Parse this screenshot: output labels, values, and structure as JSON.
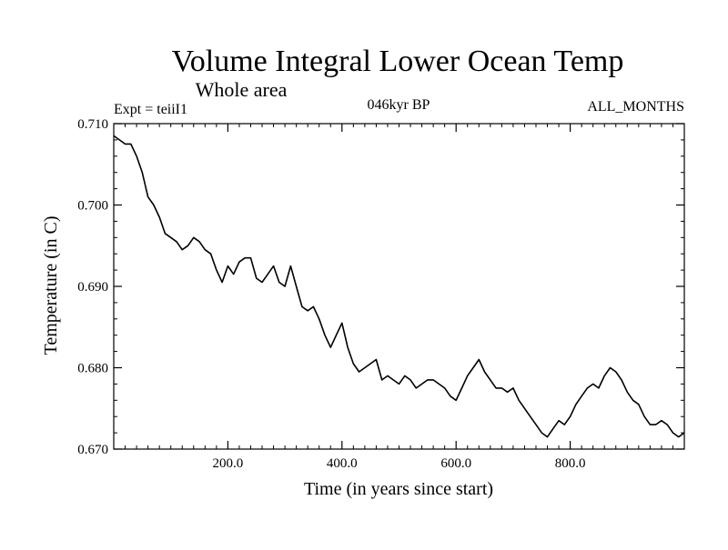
{
  "chart_data": {
    "type": "line",
    "title": "Volume Integral Lower Ocean Temp",
    "subtitle": "Whole area",
    "annotations": {
      "left": "Expt = teiiI1",
      "center": "046kyr BP",
      "right": "ALL_MONTHS"
    },
    "xlabel": "Time (in years since start)",
    "ylabel": "Temperature (in C)",
    "xlim": [
      0,
      1000
    ],
    "ylim": [
      0.67,
      0.71
    ],
    "xticks": [
      200,
      400,
      600,
      800
    ],
    "xtick_labels": [
      "200.0",
      "400.0",
      "600.0",
      "800.0"
    ],
    "yticks": [
      0.67,
      0.68,
      0.69,
      0.7,
      0.71
    ],
    "ytick_labels": [
      "0.670",
      "0.680",
      "0.690",
      "0.700",
      "0.710"
    ],
    "grid": false,
    "legend": "none",
    "series": [
      {
        "color": "#000000",
        "x": [
          0,
          10,
          20,
          30,
          40,
          50,
          60,
          70,
          80,
          90,
          100,
          110,
          120,
          130,
          140,
          150,
          160,
          170,
          180,
          190,
          200,
          210,
          220,
          230,
          240,
          250,
          260,
          270,
          280,
          290,
          300,
          310,
          320,
          330,
          340,
          350,
          360,
          370,
          380,
          390,
          400,
          410,
          420,
          430,
          440,
          450,
          460,
          470,
          480,
          490,
          500,
          510,
          520,
          530,
          540,
          550,
          560,
          570,
          580,
          590,
          600,
          610,
          620,
          630,
          640,
          650,
          660,
          670,
          680,
          690,
          700,
          710,
          720,
          730,
          740,
          750,
          760,
          770,
          780,
          790,
          800,
          810,
          820,
          830,
          840,
          850,
          860,
          870,
          880,
          890,
          900,
          910,
          920,
          930,
          940,
          950,
          960,
          970,
          980,
          990,
          1000
        ],
        "y": [
          0.7085,
          0.708,
          0.7075,
          0.7075,
          0.706,
          0.704,
          0.701,
          0.7,
          0.6985,
          0.6965,
          0.696,
          0.6955,
          0.6945,
          0.695,
          0.696,
          0.6955,
          0.6945,
          0.694,
          0.692,
          0.6905,
          0.6925,
          0.6915,
          0.693,
          0.6935,
          0.6935,
          0.691,
          0.6905,
          0.6915,
          0.6925,
          0.6905,
          0.69,
          0.6925,
          0.69,
          0.6875,
          0.687,
          0.6875,
          0.686,
          0.684,
          0.6825,
          0.684,
          0.6855,
          0.6825,
          0.6805,
          0.6795,
          0.68,
          0.6805,
          0.681,
          0.6785,
          0.679,
          0.6785,
          0.678,
          0.679,
          0.6785,
          0.6775,
          0.678,
          0.6785,
          0.6785,
          0.678,
          0.6775,
          0.6765,
          0.676,
          0.6775,
          0.679,
          0.68,
          0.681,
          0.6795,
          0.6785,
          0.6775,
          0.6775,
          0.677,
          0.6775,
          0.676,
          0.675,
          0.674,
          0.673,
          0.672,
          0.6715,
          0.6725,
          0.6735,
          0.673,
          0.674,
          0.6755,
          0.6765,
          0.6775,
          0.678,
          0.6775,
          0.679,
          0.68,
          0.6795,
          0.6785,
          0.677,
          0.676,
          0.6755,
          0.674,
          0.673,
          0.673,
          0.6735,
          0.673,
          0.672,
          0.6715,
          0.672
        ]
      }
    ]
  }
}
